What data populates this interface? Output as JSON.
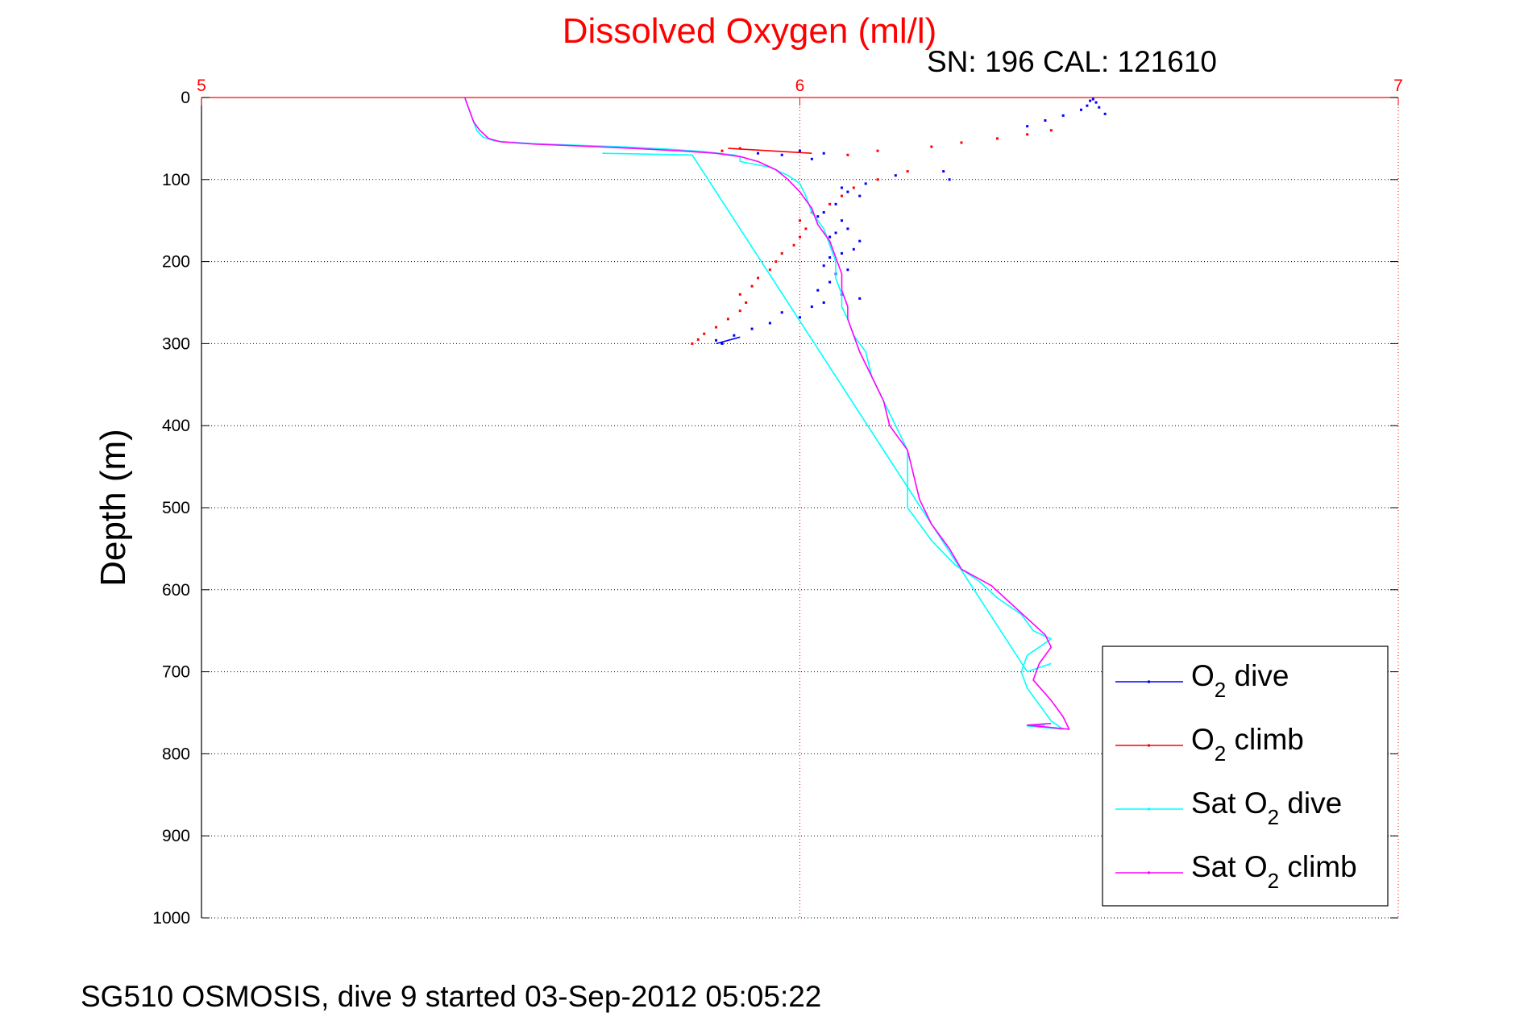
{
  "footer": "SG510 OSMOSIS, dive 9 started 03-Sep-2012 05:05:22",
  "chart_data": {
    "type": "line",
    "title": "Dissolved Oxygen (ml/l)",
    "subtitle": "SN: 196  CAL: 121610",
    "xlabel": "",
    "ylabel": "Depth (m)",
    "xlim": [
      5,
      7
    ],
    "ylim": [
      0,
      1000
    ],
    "y_reversed": true,
    "x_axis_position": "top",
    "x_ticks": [
      5,
      6,
      7
    ],
    "y_ticks": [
      0,
      100,
      200,
      300,
      400,
      500,
      600,
      700,
      800,
      900,
      1000
    ],
    "grid": true,
    "legend_position": "bottom-right",
    "colors": {
      "title": "#ff0000",
      "x_ticks": "#ff0000",
      "o2_dive": "#0000ff",
      "o2_climb": "#ff0000",
      "sat_dive": "#00ffff",
      "sat_climb": "#ff00ff"
    },
    "legend": [
      {
        "label": "O",
        "sub": "2",
        "rest": " dive",
        "color": "#0000ff"
      },
      {
        "label": "O",
        "sub": "2",
        "rest": " climb",
        "color": "#ff0000"
      },
      {
        "label": "Sat O",
        "sub": "2",
        "rest": " dive",
        "color": "#00ffff"
      },
      {
        "label": "Sat O",
        "sub": "2",
        "rest": " climb",
        "color": "#ff00ff"
      }
    ],
    "series": [
      {
        "name": "O2 dive",
        "style": "dots",
        "color": "#0000ff",
        "points": [
          [
            6.49,
            2
          ],
          [
            6.485,
            4
          ],
          [
            6.495,
            6
          ],
          [
            6.48,
            10
          ],
          [
            6.5,
            12
          ],
          [
            6.47,
            15
          ],
          [
            6.51,
            20
          ],
          [
            6.44,
            22
          ],
          [
            6.41,
            28
          ],
          [
            6.38,
            35
          ],
          [
            6.04,
            68
          ],
          [
            6.02,
            75
          ],
          [
            6.0,
            65
          ],
          [
            5.97,
            70
          ],
          [
            5.93,
            68
          ],
          [
            6.24,
            90
          ],
          [
            6.16,
            95
          ],
          [
            6.25,
            100
          ],
          [
            6.11,
            105
          ],
          [
            6.07,
            110
          ],
          [
            6.08,
            115
          ],
          [
            6.1,
            120
          ],
          [
            6.06,
            130
          ],
          [
            6.04,
            140
          ],
          [
            6.03,
            145
          ],
          [
            6.07,
            150
          ],
          [
            6.08,
            160
          ],
          [
            6.06,
            165
          ],
          [
            6.05,
            170
          ],
          [
            6.1,
            175
          ],
          [
            6.09,
            185
          ],
          [
            6.07,
            190
          ],
          [
            6.05,
            195
          ],
          [
            6.04,
            205
          ],
          [
            6.08,
            210
          ],
          [
            6.06,
            215
          ],
          [
            6.05,
            225
          ],
          [
            6.03,
            235
          ],
          [
            6.07,
            240
          ],
          [
            6.1,
            245
          ],
          [
            6.04,
            250
          ],
          [
            6.02,
            255
          ],
          [
            5.97,
            262
          ],
          [
            6.0,
            268
          ],
          [
            5.95,
            275
          ],
          [
            5.92,
            282
          ],
          [
            5.89,
            290
          ],
          [
            5.86,
            296
          ],
          [
            5.87,
            300
          ]
        ]
      },
      {
        "name": "O2 climb",
        "style": "dots",
        "color": "#ff0000",
        "points": [
          [
            6.42,
            40
          ],
          [
            6.38,
            45
          ],
          [
            6.33,
            50
          ],
          [
            6.27,
            55
          ],
          [
            6.22,
            60
          ],
          [
            6.13,
            65
          ],
          [
            6.08,
            70
          ],
          [
            5.9,
            62
          ],
          [
            5.87,
            65
          ],
          [
            6.18,
            90
          ],
          [
            6.13,
            100
          ],
          [
            6.09,
            110
          ],
          [
            6.07,
            120
          ],
          [
            6.05,
            130
          ],
          [
            6.02,
            140
          ],
          [
            6.0,
            150
          ],
          [
            6.01,
            160
          ],
          [
            6.0,
            170
          ],
          [
            5.99,
            180
          ],
          [
            5.97,
            190
          ],
          [
            5.96,
            200
          ],
          [
            5.95,
            210
          ],
          [
            5.93,
            220
          ],
          [
            5.92,
            230
          ],
          [
            5.9,
            240
          ],
          [
            5.91,
            250
          ],
          [
            5.9,
            260
          ],
          [
            5.88,
            270
          ],
          [
            5.86,
            280
          ],
          [
            5.84,
            288
          ],
          [
            5.83,
            295
          ],
          [
            5.82,
            300
          ]
        ]
      },
      {
        "name": "O2 climb line",
        "style": "line",
        "color": "#ff0000",
        "points": [
          [
            5.88,
            62
          ],
          [
            6.02,
            68
          ]
        ]
      },
      {
        "name": "O2 dive line",
        "style": "line",
        "color": "#0000ff",
        "points": [
          [
            5.86,
            300
          ],
          [
            5.9,
            292
          ]
        ]
      },
      {
        "name": "Sat O2 dive",
        "style": "line",
        "color": "#00ffff",
        "points": [
          [
            5.44,
            0
          ],
          [
            5.445,
            10
          ],
          [
            5.45,
            20
          ],
          [
            5.455,
            30
          ],
          [
            5.46,
            40
          ],
          [
            5.47,
            48
          ],
          [
            5.49,
            53
          ],
          [
            5.55,
            56
          ],
          [
            5.62,
            58
          ],
          [
            5.7,
            60
          ],
          [
            5.78,
            63
          ],
          [
            5.84,
            66
          ],
          [
            5.89,
            70
          ],
          [
            5.9,
            72
          ],
          [
            5.9,
            78
          ],
          [
            5.95,
            85
          ],
          [
            5.98,
            95
          ],
          [
            6.0,
            105
          ],
          [
            6.01,
            120
          ],
          [
            6.02,
            140
          ],
          [
            6.04,
            160
          ],
          [
            6.05,
            180
          ],
          [
            6.06,
            200
          ],
          [
            6.06,
            220
          ],
          [
            6.07,
            240
          ],
          [
            6.07,
            255
          ],
          [
            6.08,
            270
          ],
          [
            6.09,
            290
          ],
          [
            6.11,
            310
          ],
          [
            6.12,
            340
          ],
          [
            6.14,
            370
          ],
          [
            6.16,
            400
          ],
          [
            6.18,
            430
          ],
          [
            6.18,
            450
          ],
          [
            6.18,
            470
          ],
          [
            6.18,
            500
          ],
          [
            6.22,
            540
          ],
          [
            6.26,
            570
          ],
          [
            6.3,
            590
          ],
          [
            6.33,
            610
          ],
          [
            6.37,
            630
          ],
          [
            6.39,
            650
          ],
          [
            6.42,
            660
          ],
          [
            6.38,
            680
          ],
          [
            6.37,
            700
          ],
          [
            6.38,
            720
          ],
          [
            6.4,
            740
          ],
          [
            6.42,
            760
          ],
          [
            6.44,
            770
          ],
          [
            6.38,
            766
          ],
          [
            6.41,
            765
          ]
        ]
      },
      {
        "name": "Sat O2 dive line",
        "style": "line",
        "color": "#00ffff",
        "points": [
          [
            5.67,
            68
          ],
          [
            5.82,
            70
          ],
          [
            6.38,
            700
          ],
          [
            6.42,
            690
          ]
        ]
      },
      {
        "name": "Sat O2 climb",
        "style": "line",
        "color": "#ff00ff",
        "points": [
          [
            5.44,
            0
          ],
          [
            5.445,
            10
          ],
          [
            5.45,
            20
          ],
          [
            5.455,
            30
          ],
          [
            5.465,
            40
          ],
          [
            5.48,
            50
          ],
          [
            5.5,
            54
          ],
          [
            5.56,
            57
          ],
          [
            5.63,
            59
          ],
          [
            5.72,
            62
          ],
          [
            5.8,
            65
          ],
          [
            5.86,
            68
          ],
          [
            5.9,
            72
          ],
          [
            5.93,
            78
          ],
          [
            5.96,
            88
          ],
          [
            5.98,
            100
          ],
          [
            6.0,
            115
          ],
          [
            6.02,
            135
          ],
          [
            6.03,
            155
          ],
          [
            6.05,
            175
          ],
          [
            6.06,
            195
          ],
          [
            6.07,
            215
          ],
          [
            6.07,
            235
          ],
          [
            6.08,
            255
          ],
          [
            6.08,
            270
          ],
          [
            6.09,
            290
          ],
          [
            6.1,
            310
          ],
          [
            6.12,
            340
          ],
          [
            6.14,
            370
          ],
          [
            6.15,
            400
          ],
          [
            6.18,
            430
          ],
          [
            6.19,
            460
          ],
          [
            6.2,
            490
          ],
          [
            6.22,
            520
          ],
          [
            6.25,
            550
          ],
          [
            6.27,
            575
          ],
          [
            6.32,
            595
          ],
          [
            6.35,
            615
          ],
          [
            6.38,
            635
          ],
          [
            6.41,
            655
          ],
          [
            6.42,
            670
          ],
          [
            6.4,
            690
          ],
          [
            6.39,
            710
          ],
          [
            6.42,
            735
          ],
          [
            6.44,
            755
          ],
          [
            6.45,
            770
          ],
          [
            6.38,
            765
          ],
          [
            6.42,
            763
          ]
        ]
      }
    ]
  }
}
